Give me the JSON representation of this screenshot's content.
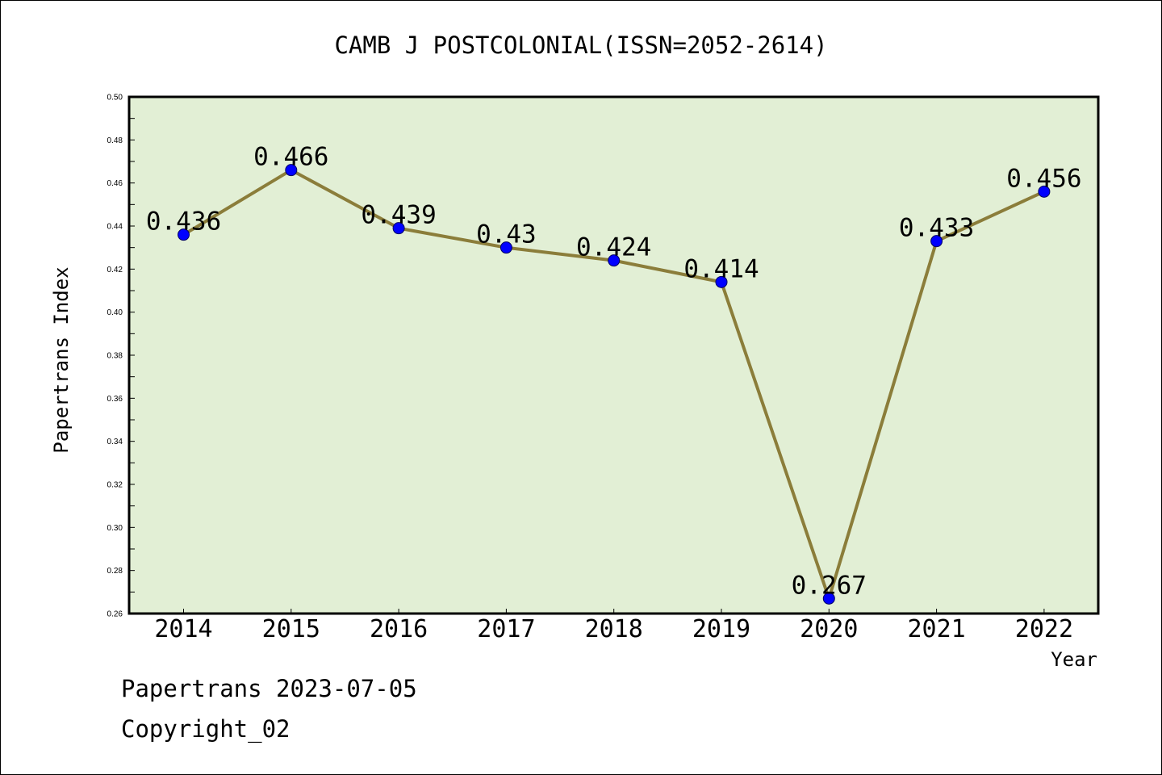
{
  "chart_data": {
    "type": "line",
    "title": "CAMB J POSTCOLONIAL(ISSN=2052-2614)",
    "xlabel": "Year",
    "ylabel": "Papertrans Index",
    "categories": [
      "2014",
      "2015",
      "2016",
      "2017",
      "2018",
      "2019",
      "2020",
      "2021",
      "2022"
    ],
    "series": [
      {
        "values": [
          0.436,
          0.466,
          0.439,
          0.43,
          0.424,
          0.414,
          0.267,
          0.433,
          0.456
        ],
        "data_labels": [
          "0.436",
          "0.466",
          "0.439",
          "0.43",
          "0.424",
          "0.414",
          "0.267",
          "0.433",
          "0.456"
        ],
        "line_color": "#8b7d3a",
        "marker_color": "#0000ff"
      }
    ],
    "ylim": [
      0.26,
      0.5
    ],
    "yticks": [
      "0.26",
      "0.28",
      "0.30",
      "0.32",
      "0.34",
      "0.36",
      "0.38",
      "0.40",
      "0.42",
      "0.44",
      "0.46",
      "0.48",
      "0.50"
    ],
    "plot_background": "#e2efd5",
    "grid": false,
    "legend": "none"
  },
  "footer": {
    "line1": "Papertrans 2023-07-05",
    "line2": "Copyright_02"
  }
}
